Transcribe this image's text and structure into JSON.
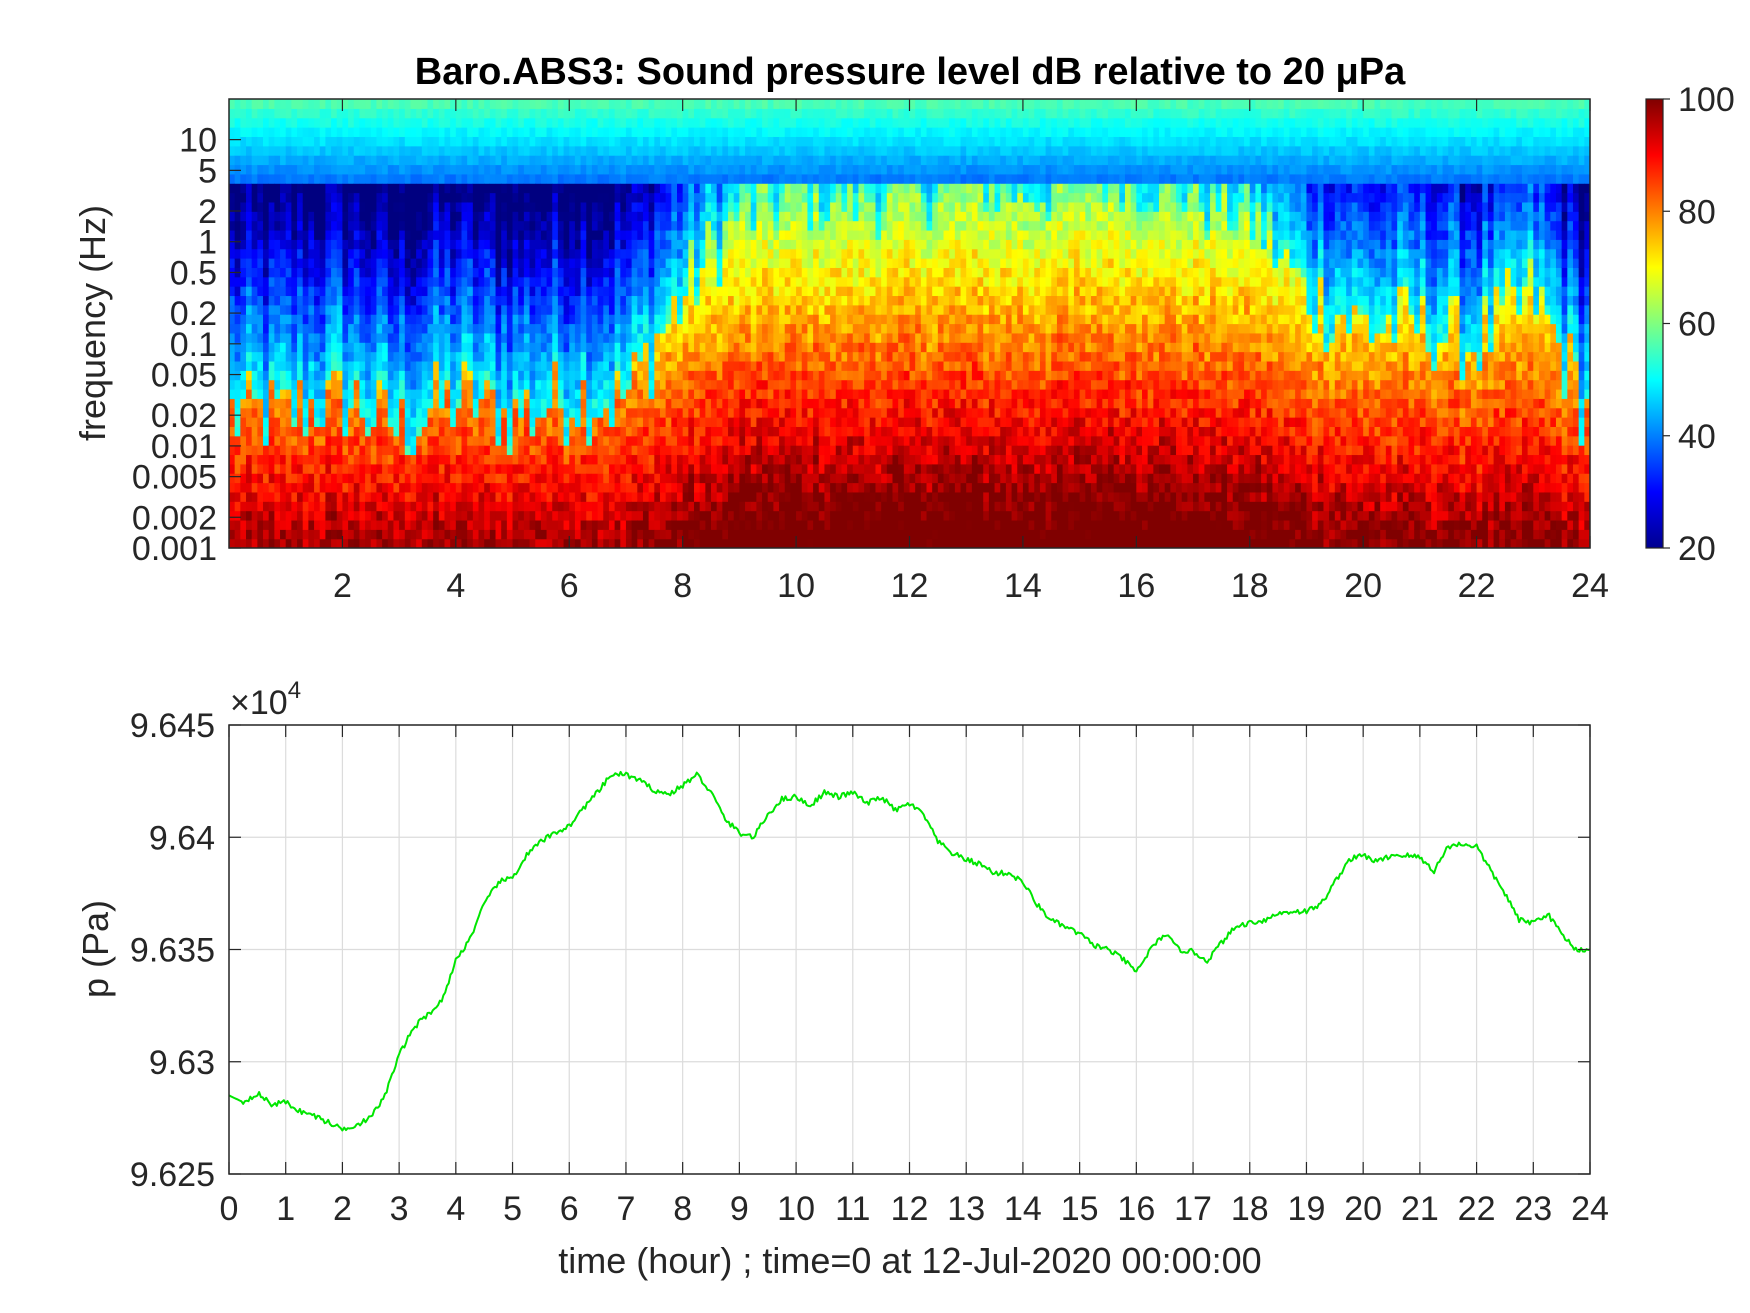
{
  "colors": {
    "background": "#ffffff",
    "axis": "#262626",
    "grid": "#dcdcdc",
    "pressure_line": "#00e600",
    "colormap": "jet"
  },
  "chart_data": [
    {
      "type": "heatmap",
      "title": "Baro.ABS3: Sound pressure level dB relative to 20 μPa",
      "xlabel": "",
      "ylabel": "frequency (Hz)",
      "xlim": [
        0,
        24
      ],
      "ylim": [
        0.001,
        25
      ],
      "y_scale": "log",
      "x_ticks": [
        "2",
        "4",
        "6",
        "8",
        "10",
        "12",
        "14",
        "16",
        "18",
        "20",
        "22",
        "24"
      ],
      "y_ticks": [
        "0.001",
        "0.002",
        "0.005",
        "0.01",
        "0.02",
        "0.05",
        "0.1",
        "0.2",
        "0.5",
        "1",
        "2",
        "5",
        "10"
      ],
      "colorbar": {
        "ticks": [
          "20",
          "40",
          "60",
          "80",
          "100"
        ],
        "range": [
          20,
          100
        ],
        "unit": "dB"
      },
      "activity_profile": {
        "hours": [
          0,
          1,
          2,
          3,
          4,
          5,
          6,
          7,
          8,
          9,
          10,
          11,
          12,
          13,
          14,
          15,
          16,
          17,
          18,
          19,
          20,
          21,
          22,
          23,
          24
        ],
        "cutoff_frequency_hz": [
          0.02,
          0.02,
          0.03,
          0.015,
          0.03,
          0.02,
          0.03,
          0.03,
          0.3,
          2.0,
          3.0,
          3.0,
          3.0,
          5.0,
          3.0,
          5.0,
          5.0,
          3.0,
          2.0,
          0.3,
          0.15,
          0.15,
          0.1,
          0.3,
          0.02
        ]
      }
    },
    {
      "type": "line",
      "title": "",
      "xlabel": "time (hour) ; time=0 at 12-Jul-2020 00:00:00",
      "ylabel": "p (Pa)",
      "exponent_label": "×10",
      "exponent_power": "4",
      "xlim": [
        0,
        24
      ],
      "ylim": [
        96250,
        96450
      ],
      "grid": true,
      "x_ticks": [
        "0",
        "1",
        "2",
        "3",
        "4",
        "5",
        "6",
        "7",
        "8",
        "9",
        "10",
        "11",
        "12",
        "13",
        "14",
        "15",
        "16",
        "17",
        "18",
        "19",
        "20",
        "21",
        "22",
        "23",
        "24"
      ],
      "y_ticks": [
        "9.625",
        "9.63",
        "9.635",
        "9.64",
        "9.645"
      ],
      "series": [
        {
          "x": [
            0,
            0.25,
            0.5,
            0.75,
            1,
            1.25,
            1.5,
            1.75,
            2,
            2.25,
            2.5,
            2.75,
            3,
            3.25,
            3.5,
            3.75,
            4,
            4.25,
            4.5,
            4.75,
            5,
            5.25,
            5.5,
            5.75,
            6,
            6.25,
            6.5,
            6.75,
            7,
            7.25,
            7.5,
            7.75,
            8,
            8.25,
            8.5,
            8.75,
            9,
            9.25,
            9.5,
            9.75,
            10,
            10.25,
            10.5,
            10.75,
            11,
            11.25,
            11.5,
            11.75,
            12,
            12.25,
            12.5,
            12.75,
            13,
            13.25,
            13.5,
            13.75,
            14,
            14.25,
            14.5,
            14.75,
            15,
            15.25,
            15.5,
            15.75,
            16,
            16.25,
            16.5,
            16.75,
            17,
            17.25,
            17.5,
            17.75,
            18,
            18.25,
            18.5,
            18.75,
            19,
            19.25,
            19.5,
            19.75,
            20,
            20.25,
            20.5,
            20.75,
            21,
            21.25,
            21.5,
            21.75,
            22,
            22.25,
            22.5,
            22.75,
            23,
            23.25,
            23.5,
            23.75,
            24
          ],
          "y": [
            96285,
            96282,
            96286,
            96281,
            96282,
            96278,
            96276,
            96273,
            96270,
            96272,
            96275,
            96285,
            96303,
            96315,
            96321,
            96327,
            96345,
            96355,
            96370,
            96380,
            96382,
            96392,
            96398,
            96402,
            96405,
            96413,
            96420,
            96428,
            96428,
            96425,
            96421,
            96419,
            96423,
            96428,
            96420,
            96408,
            96402,
            96400,
            96410,
            96417,
            96418,
            96414,
            96420,
            96418,
            96420,
            96415,
            96418,
            96412,
            96415,
            96410,
            96398,
            96393,
            96390,
            96388,
            96384,
            96384,
            96380,
            96370,
            96363,
            96360,
            96357,
            96352,
            96350,
            96346,
            96340,
            96350,
            96357,
            96350,
            96349,
            96345,
            96353,
            96360,
            96362,
            96363,
            96366,
            96367,
            96367,
            96370,
            96380,
            96390,
            96392,
            96389,
            96392,
            96392,
            96391,
            96385,
            96396,
            96397,
            96396,
            96385,
            96375,
            96363,
            96362,
            96366,
            96357,
            96350,
            96350
          ]
        }
      ]
    }
  ]
}
